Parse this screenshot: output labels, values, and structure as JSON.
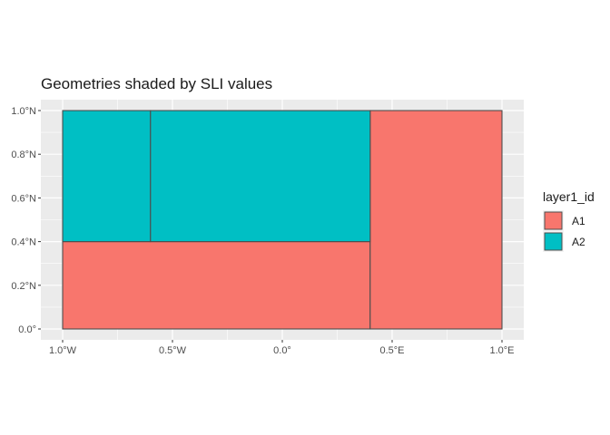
{
  "chart_data": {
    "type": "map",
    "title": "Geometries shaded by SLI values",
    "xlim": [
      -1.0,
      1.0
    ],
    "ylim": [
      0.0,
      1.0
    ],
    "x_ticks": [
      {
        "value": -1.0,
        "label": "1.0°W"
      },
      {
        "value": -0.5,
        "label": "0.5°W"
      },
      {
        "value": 0.0,
        "label": "0.0°"
      },
      {
        "value": 0.5,
        "label": "0.5°E"
      },
      {
        "value": 1.0,
        "label": "1.0°E"
      }
    ],
    "y_ticks": [
      {
        "value": 0.0,
        "label": "0.0°"
      },
      {
        "value": 0.2,
        "label": "0.2°N"
      },
      {
        "value": 0.4,
        "label": "0.4°N"
      },
      {
        "value": 0.6,
        "label": "0.6°N"
      },
      {
        "value": 0.8,
        "label": "0.8°N"
      },
      {
        "value": 1.0,
        "label": "1.0°N"
      }
    ],
    "grid": true,
    "legend": {
      "title": "layer1_id",
      "placement": "right",
      "entries": [
        {
          "label": "A1",
          "color": "#F8766D"
        },
        {
          "label": "A2",
          "color": "#00BFC4"
        }
      ]
    },
    "polygons": [
      {
        "group": "A1",
        "x": [
          -1.0,
          0.4
        ],
        "y": [
          0.0,
          0.4
        ]
      },
      {
        "group": "A1",
        "x": [
          0.4,
          1.0
        ],
        "y": [
          0.0,
          1.0
        ]
      },
      {
        "group": "A2",
        "x": [
          -1.0,
          -0.6
        ],
        "y": [
          0.4,
          1.0
        ]
      },
      {
        "group": "A2",
        "x": [
          -0.6,
          0.4
        ],
        "y": [
          0.4,
          1.0
        ]
      }
    ]
  },
  "colors": {
    "panel_background": "#EBEBEB",
    "grid_major": "#FFFFFF",
    "outline": "#4D4D4D"
  }
}
